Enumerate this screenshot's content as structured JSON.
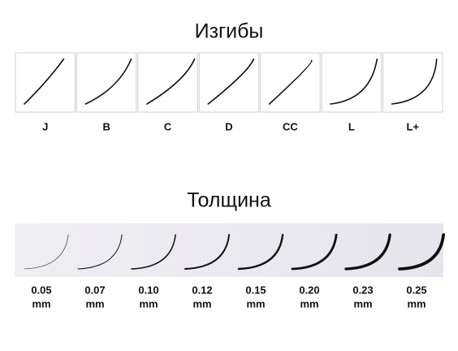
{
  "curls": {
    "title": "Изгибы",
    "items": [
      "J",
      "B",
      "C",
      "D",
      "CC",
      "L",
      "L+"
    ]
  },
  "thickness": {
    "title": "Толщина",
    "items": [
      {
        "value": "0.05",
        "unit": "mm"
      },
      {
        "value": "0.07",
        "unit": "mm"
      },
      {
        "value": "0.10",
        "unit": "mm"
      },
      {
        "value": "0.12",
        "unit": "mm"
      },
      {
        "value": "0.15",
        "unit": "mm"
      },
      {
        "value": "0.20",
        "unit": "mm"
      },
      {
        "value": "0.23",
        "unit": "mm"
      },
      {
        "value": "0.25",
        "unit": "mm"
      }
    ]
  }
}
